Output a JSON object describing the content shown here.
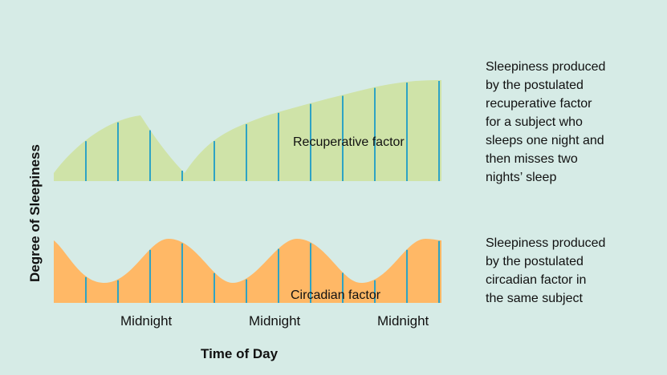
{
  "chart_data": {
    "type": "area",
    "ylabel": "Degree of Sleepiness",
    "xlabel": "Time of Day",
    "x_ticks": [
      "Midnight",
      "Midnight",
      "Midnight"
    ],
    "series": [
      {
        "name": "Recuperative factor",
        "color": "#cfe3a8",
        "annotation": [
          "Sleepiness produced",
          "by the postulated",
          "recuperative factor",
          "for a subject who",
          "sleeps one night and",
          "then misses two",
          "nights’ sleep"
        ]
      },
      {
        "name": "Circadian factor",
        "color": "#ffb866",
        "annotation": [
          "Sleepiness produced",
          "by the postulated",
          "circadian factor in",
          "the same subject"
        ]
      }
    ],
    "marker_color": "#2ea3c4"
  }
}
